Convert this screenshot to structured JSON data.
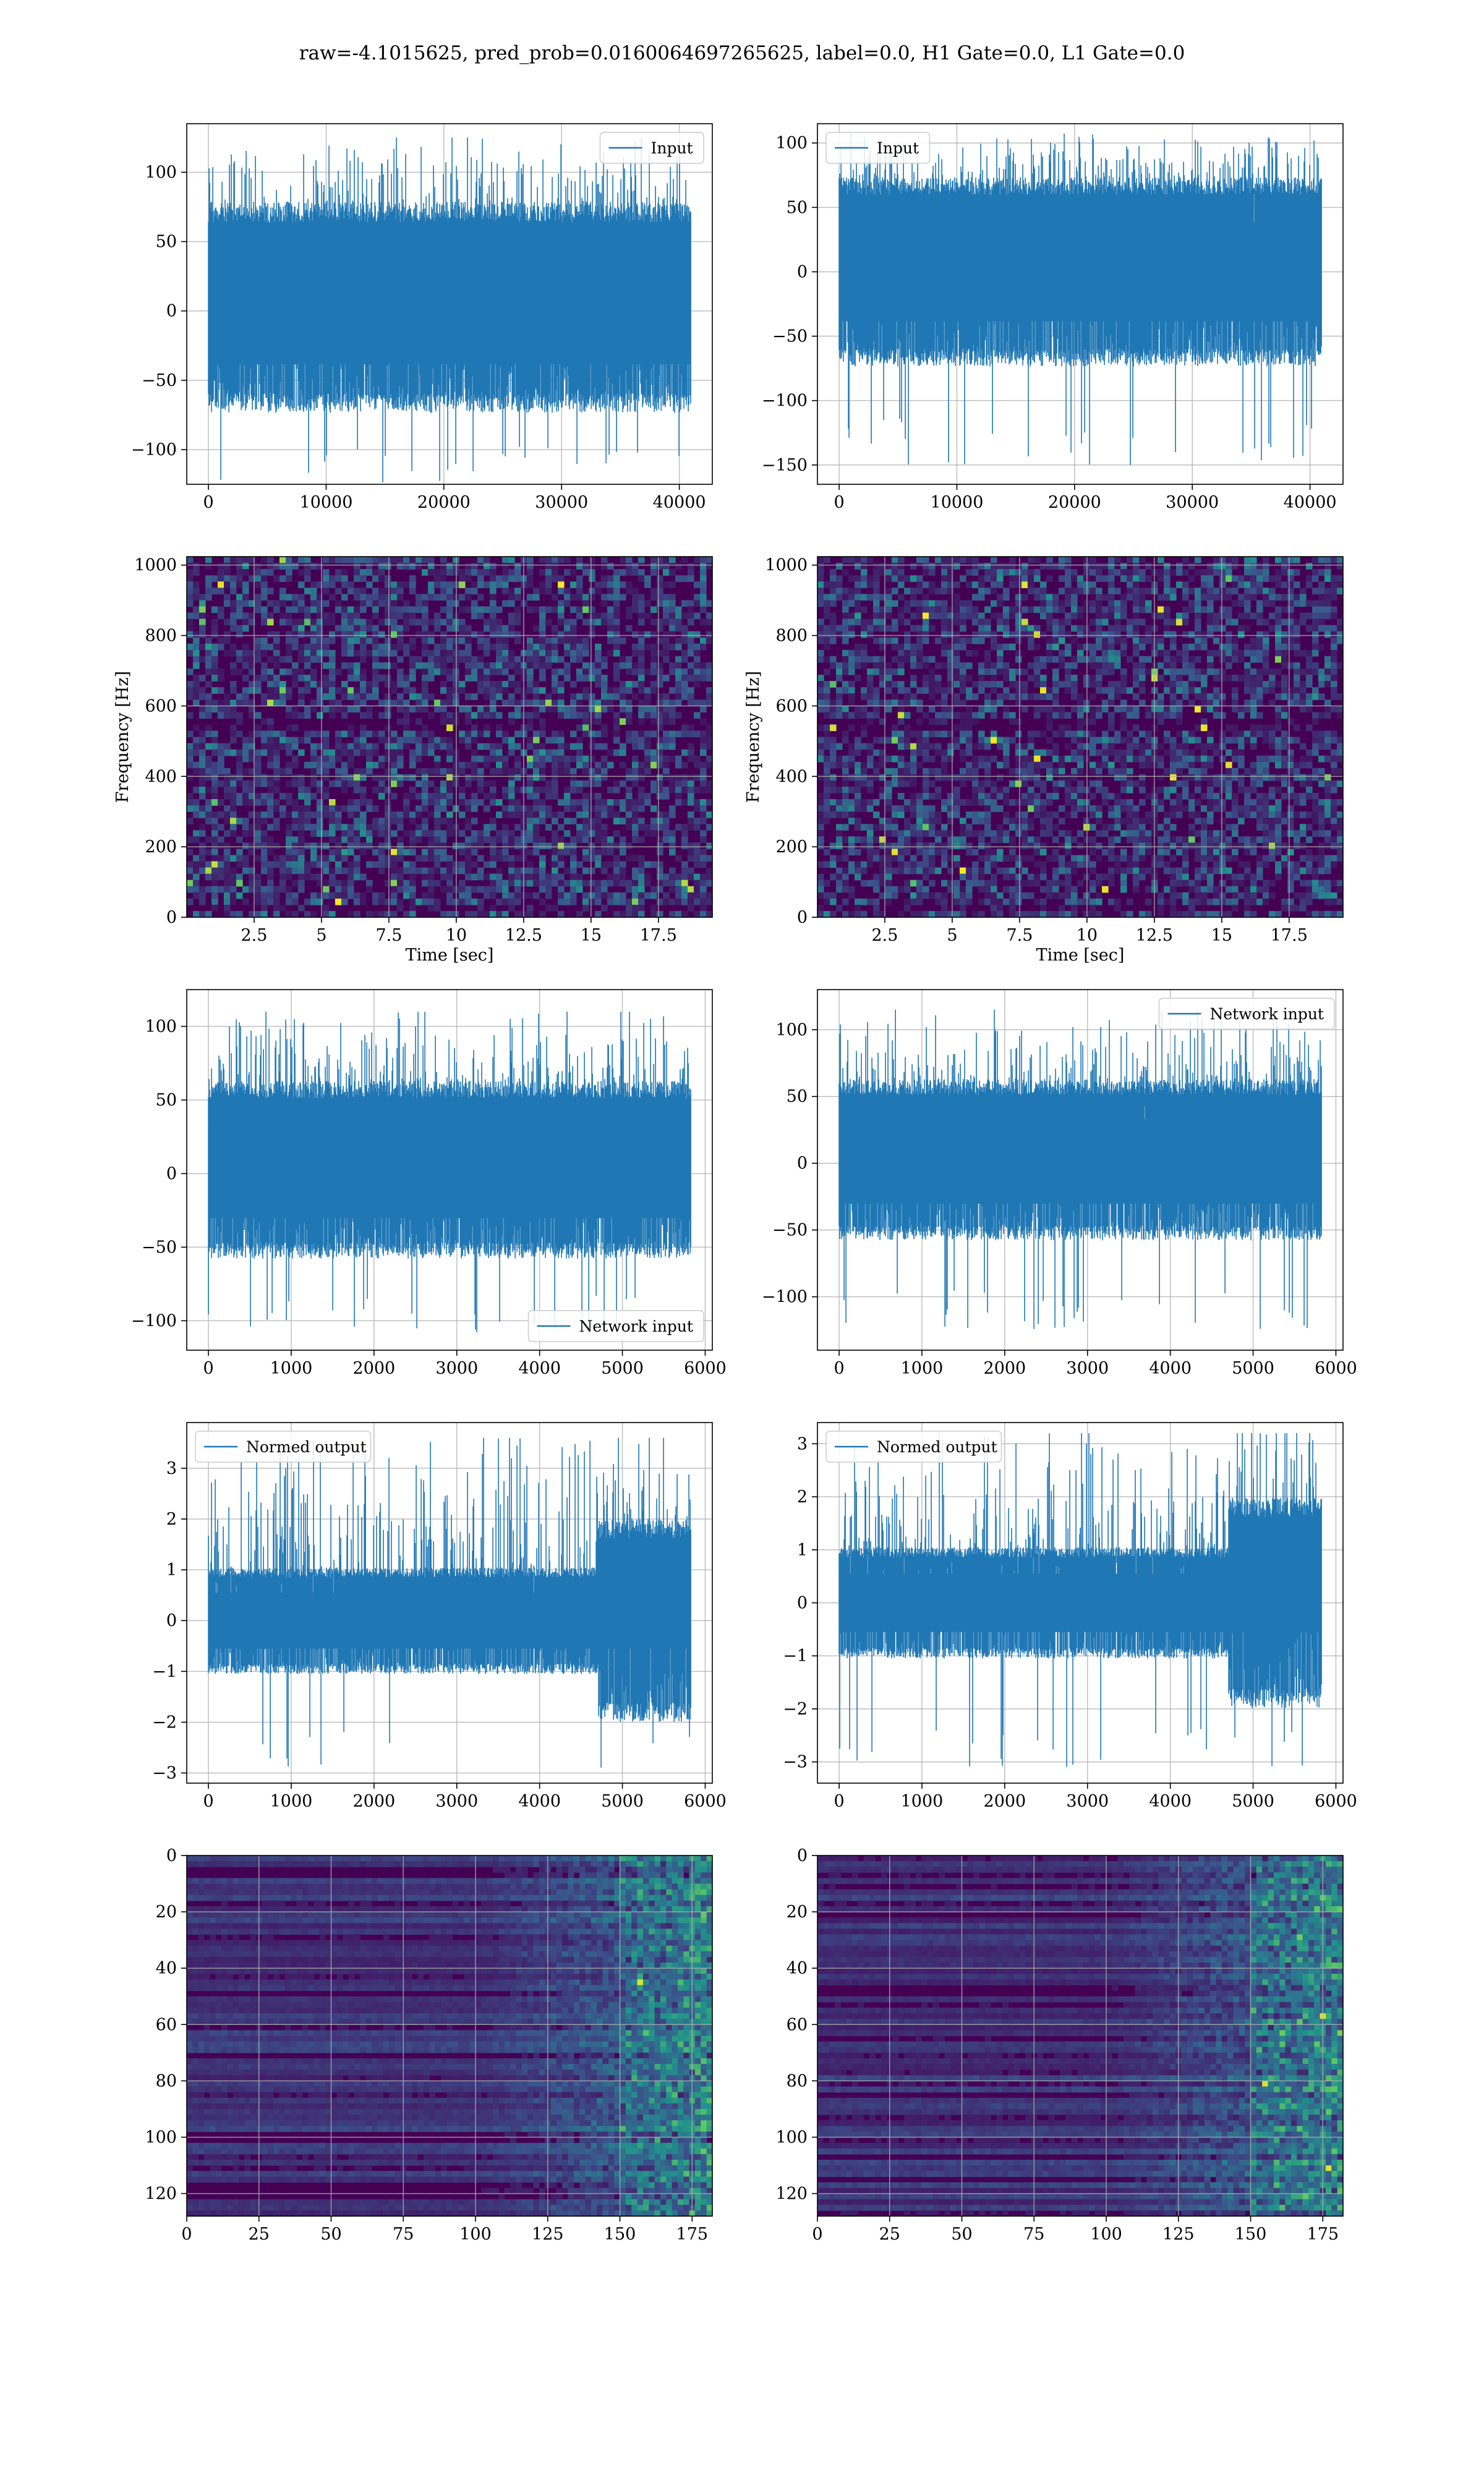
{
  "title": "raw=-4.1015625, pred_prob=0.0160064697265625, label=0.0, H1 Gate=0.0, L1 Gate=0.0",
  "colors": {
    "line": "#1f77b4",
    "grid": "#b0b0b0",
    "viridis_low": "#440154",
    "viridis_mid": "#21918c",
    "viridis_high": "#fde725"
  },
  "chart_data": [
    {
      "id": "p11",
      "type": "line",
      "x_range": [
        0,
        40960
      ],
      "ylim": [
        -125,
        135
      ],
      "xticks": [
        0,
        10000,
        20000,
        30000,
        40000
      ],
      "yticks": [
        -100,
        -50,
        0,
        50,
        100
      ],
      "envelope": {
        "bulk": [
          -70,
          75
        ],
        "peaks": [
          -125,
          125
        ]
      },
      "series": [
        {
          "name": "Input"
        }
      ],
      "legend": "upper right",
      "grid": true
    },
    {
      "id": "p12",
      "type": "line",
      "x_range": [
        0,
        40960
      ],
      "ylim": [
        -165,
        115
      ],
      "xticks": [
        0,
        10000,
        20000,
        30000,
        40000
      ],
      "yticks": [
        -150,
        -100,
        -50,
        0,
        50,
        100
      ],
      "envelope": {
        "bulk": [
          -70,
          70
        ],
        "peaks": [
          -150,
          108
        ]
      },
      "series": [
        {
          "name": "Input"
        }
      ],
      "legend": "upper left",
      "grid": true
    },
    {
      "id": "p21",
      "type": "heatmap",
      "xlim": [
        0,
        19.5
      ],
      "ylim": [
        0,
        1024
      ],
      "xticks": [
        2.5,
        5.0,
        7.5,
        10.0,
        12.5,
        15.0,
        17.5
      ],
      "yticks": [
        0,
        200,
        400,
        600,
        800,
        1000
      ],
      "xlabel": "Time [sec]",
      "ylabel": "Frequency [Hz]",
      "colormap": "viridis",
      "grid": true
    },
    {
      "id": "p22",
      "type": "heatmap",
      "xlim": [
        0,
        19.5
      ],
      "ylim": [
        0,
        1024
      ],
      "xticks": [
        2.5,
        5.0,
        7.5,
        10.0,
        12.5,
        15.0,
        17.5
      ],
      "yticks": [
        0,
        200,
        400,
        600,
        800,
        1000
      ],
      "xlabel": "Time [sec]",
      "ylabel": "Frequency [Hz]",
      "colormap": "viridis",
      "grid": true
    },
    {
      "id": "p31",
      "type": "line",
      "x_range": [
        0,
        5824
      ],
      "ylim": [
        -120,
        125
      ],
      "xticks": [
        0,
        1000,
        2000,
        3000,
        4000,
        5000,
        6000
      ],
      "yticks": [
        -100,
        -50,
        0,
        50,
        100
      ],
      "envelope": {
        "bulk": [
          -55,
          60
        ],
        "peaks": [
          -110,
          110
        ]
      },
      "series": [
        {
          "name": "Network input"
        }
      ],
      "legend": "lower right",
      "grid": true
    },
    {
      "id": "p32",
      "type": "line",
      "x_range": [
        0,
        5824
      ],
      "ylim": [
        -140,
        130
      ],
      "xticks": [
        0,
        1000,
        2000,
        3000,
        4000,
        5000,
        6000
      ],
      "yticks": [
        -100,
        -50,
        0,
        50,
        100
      ],
      "envelope": {
        "bulk": [
          -55,
          60
        ],
        "peaks": [
          -125,
          115
        ]
      },
      "series": [
        {
          "name": "Network input"
        }
      ],
      "legend": "upper right",
      "grid": true
    },
    {
      "id": "p41",
      "type": "line",
      "x_range": [
        0,
        5824
      ],
      "ylim": [
        -3.2,
        3.9
      ],
      "xticks": [
        0,
        1000,
        2000,
        3000,
        4000,
        5000,
        6000
      ],
      "yticks": [
        -3,
        -2,
        -1,
        0,
        1,
        2,
        3
      ],
      "envelope": {
        "bulk": [
          -1.0,
          1.0
        ],
        "peaks": [
          -2.9,
          3.6
        ],
        "burst_start": 4700
      },
      "series": [
        {
          "name": "Normed output"
        }
      ],
      "legend": "upper left",
      "grid": true
    },
    {
      "id": "p42",
      "type": "line",
      "x_range": [
        0,
        5824
      ],
      "ylim": [
        -3.4,
        3.4
      ],
      "xticks": [
        0,
        1000,
        2000,
        3000,
        4000,
        5000,
        6000
      ],
      "yticks": [
        -3,
        -2,
        -1,
        0,
        1,
        2,
        3
      ],
      "envelope": {
        "bulk": [
          -1.0,
          1.0
        ],
        "peaks": [
          -3.1,
          3.2
        ],
        "burst_start": 4700
      },
      "series": [
        {
          "name": "Normed output"
        }
      ],
      "legend": "upper left",
      "grid": true
    },
    {
      "id": "p51",
      "type": "heatmap",
      "xlim": [
        0,
        182
      ],
      "ylim": [
        128,
        0
      ],
      "xticks": [
        0,
        25,
        50,
        75,
        100,
        125,
        150,
        175
      ],
      "yticks": [
        0,
        20,
        40,
        60,
        80,
        100,
        120
      ],
      "colormap": "viridis",
      "grid": true
    },
    {
      "id": "p52",
      "type": "heatmap",
      "xlim": [
        0,
        182
      ],
      "ylim": [
        128,
        0
      ],
      "xticks": [
        0,
        25,
        50,
        75,
        100,
        125,
        150,
        175
      ],
      "yticks": [
        0,
        20,
        40,
        60,
        80,
        100,
        120
      ],
      "colormap": "viridis",
      "grid": true
    }
  ]
}
